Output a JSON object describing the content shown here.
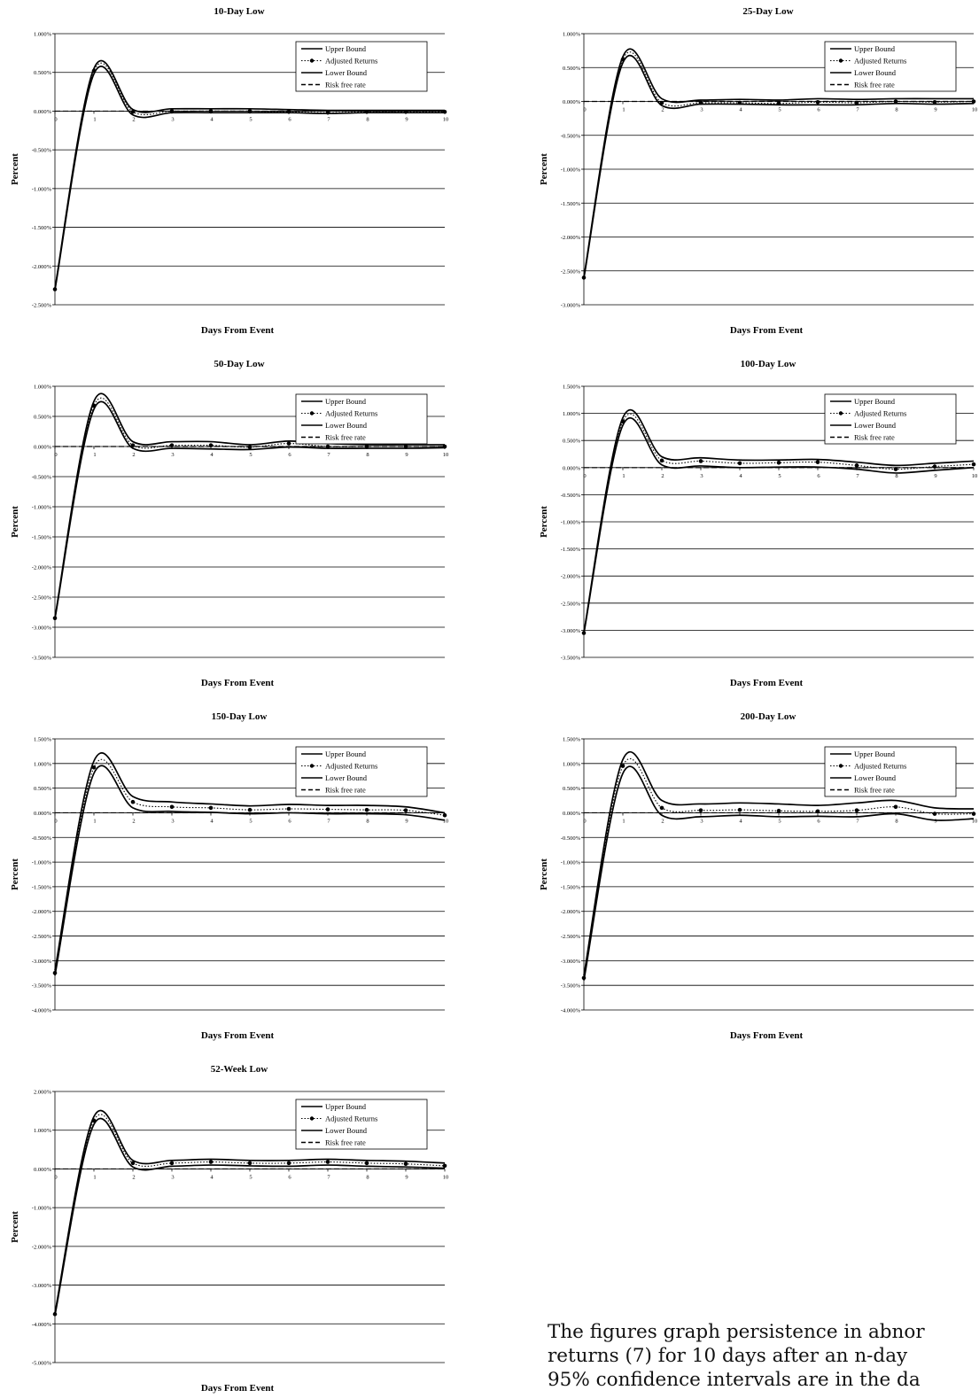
{
  "caption": {
    "line1": "The figures graph persistence in abnor",
    "line2": "returns (7) for 10 days after an n-day",
    "line3": "95% confidence intervals are in the da"
  },
  "legend_labels": [
    "Upper Bound",
    "Adjusted Returns",
    "Lower Bound",
    "Risk free rate"
  ],
  "chart_data": [
    {
      "type": "line",
      "title": "10-Day Low",
      "xlabel": "Days From Event",
      "ylabel": "Percent",
      "x": [
        0,
        1,
        2,
        3,
        4,
        5,
        6,
        7,
        8,
        9,
        10
      ],
      "ylim": [
        -2.5,
        1.0
      ],
      "y_ticks": [
        1.0,
        0.5,
        0.0,
        -0.5,
        -1.0,
        -1.5,
        -2.0,
        -2.5
      ],
      "y_tick_labels": [
        "1.000%",
        "0.500%",
        "0.000%",
        "-0.500%",
        "-1.000%",
        "-1.500%",
        "-2.000%",
        "-2.500%"
      ],
      "series": [
        {
          "name": "Upper Bound",
          "values": [
            -2.29,
            0.55,
            0.02,
            0.03,
            0.03,
            0.03,
            0.02,
            0.01,
            0.01,
            0.01,
            0.01
          ]
        },
        {
          "name": "Adjusted Returns",
          "values": [
            -2.3,
            0.52,
            -0.01,
            0.0,
            0.0,
            0.0,
            -0.01,
            -0.02,
            -0.01,
            -0.01,
            -0.01
          ]
        },
        {
          "name": "Lower Bound",
          "values": [
            -2.31,
            0.48,
            -0.05,
            -0.02,
            -0.02,
            -0.02,
            -0.02,
            -0.03,
            -0.02,
            -0.02,
            -0.02
          ]
        },
        {
          "name": "Risk free rate",
          "values": [
            0,
            0,
            0,
            0,
            0,
            0,
            0,
            0,
            0,
            0,
            0
          ]
        }
      ]
    },
    {
      "type": "line",
      "title": "25-Day Low",
      "xlabel": "Days From Event",
      "ylabel": "Percent",
      "x": [
        0,
        1,
        2,
        3,
        4,
        5,
        6,
        7,
        8,
        9,
        10
      ],
      "ylim": [
        -3.0,
        1.0
      ],
      "y_ticks": [
        1.0,
        0.5,
        0.0,
        -0.5,
        -1.0,
        -1.5,
        -2.0,
        -2.5,
        -3.0
      ],
      "y_tick_labels": [
        "1.000%",
        "0.500%",
        "0.000%",
        "-0.500%",
        "-1.000%",
        "-1.500%",
        "-2.000%",
        "-2.500%",
        "-3.000%"
      ],
      "series": [
        {
          "name": "Upper Bound",
          "values": [
            -2.59,
            0.66,
            0.04,
            0.02,
            0.03,
            0.02,
            0.04,
            0.03,
            0.04,
            0.04,
            0.04
          ]
        },
        {
          "name": "Adjusted Returns",
          "values": [
            -2.6,
            0.62,
            -0.02,
            -0.02,
            -0.02,
            -0.03,
            -0.01,
            -0.02,
            0.0,
            -0.01,
            0.0
          ]
        },
        {
          "name": "Lower Bound",
          "values": [
            -2.61,
            0.57,
            -0.06,
            -0.04,
            -0.04,
            -0.05,
            -0.05,
            -0.05,
            -0.03,
            -0.04,
            -0.03
          ]
        },
        {
          "name": "Risk free rate",
          "values": [
            0,
            0,
            0,
            0,
            0,
            0,
            0,
            0,
            0,
            0,
            0
          ]
        }
      ]
    },
    {
      "type": "line",
      "title": "50-Day Low",
      "xlabel": "Days From Event",
      "ylabel": "Percent",
      "x": [
        0,
        1,
        2,
        3,
        4,
        5,
        6,
        7,
        8,
        9,
        10
      ],
      "ylim": [
        -3.5,
        1.0
      ],
      "y_ticks": [
        1.0,
        0.5,
        0.0,
        -0.5,
        -1.0,
        -1.5,
        -2.0,
        -2.5,
        -3.0,
        -3.5
      ],
      "y_tick_labels": [
        "1.000%",
        "0.500%",
        "0.000%",
        "-0.500%",
        "-1.000%",
        "-1.500%",
        "-2.000%",
        "-2.500%",
        "-3.000%",
        "-3.500%"
      ],
      "series": [
        {
          "name": "Upper Bound",
          "values": [
            -2.84,
            0.75,
            0.08,
            0.08,
            0.08,
            0.03,
            0.09,
            0.05,
            0.03,
            0.03,
            0.03
          ]
        },
        {
          "name": "Adjusted Returns",
          "values": [
            -2.85,
            0.68,
            0.02,
            0.02,
            0.02,
            -0.01,
            0.05,
            0.0,
            0.0,
            0.0,
            0.0
          ]
        },
        {
          "name": "Lower Bound",
          "values": [
            -2.86,
            0.62,
            -0.03,
            -0.03,
            -0.04,
            -0.05,
            -0.01,
            -0.03,
            -0.03,
            -0.03,
            -0.02
          ]
        },
        {
          "name": "Risk free rate",
          "values": [
            0,
            0,
            0,
            0,
            0,
            0,
            0,
            0,
            0,
            0,
            0
          ]
        }
      ]
    },
    {
      "type": "line",
      "title": "100-Day Low",
      "xlabel": "Days From Event",
      "ylabel": "Percent",
      "x": [
        0,
        1,
        2,
        3,
        4,
        5,
        6,
        7,
        8,
        9,
        10
      ],
      "ylim": [
        -3.5,
        1.5
      ],
      "y_ticks": [
        1.5,
        1.0,
        0.5,
        0.0,
        -0.5,
        -1.0,
        -1.5,
        -2.0,
        -2.5,
        -3.0,
        -3.5
      ],
      "y_tick_labels": [
        "1.500%",
        "1.000%",
        "0.500%",
        "0.000%",
        "-0.500%",
        "-1.000%",
        "-1.500%",
        "-2.000%",
        "-2.500%",
        "-3.000%",
        "-3.500%"
      ],
      "series": [
        {
          "name": "Upper Bound",
          "values": [
            -3.04,
            0.92,
            0.2,
            0.18,
            0.14,
            0.14,
            0.15,
            0.1,
            0.04,
            0.08,
            0.12
          ]
        },
        {
          "name": "Adjusted Returns",
          "values": [
            -3.05,
            0.85,
            0.13,
            0.12,
            0.08,
            0.09,
            0.1,
            0.04,
            -0.03,
            0.02,
            0.06
          ]
        },
        {
          "name": "Lower Bound",
          "values": [
            -3.06,
            0.78,
            0.05,
            0.03,
            0.0,
            0.01,
            0.01,
            -0.03,
            -0.1,
            -0.05,
            0.0
          ]
        },
        {
          "name": "Risk free rate",
          "values": [
            0,
            0,
            0,
            0,
            0,
            0,
            0,
            0,
            0,
            0,
            0
          ]
        }
      ]
    },
    {
      "type": "line",
      "title": "150-Day Low",
      "xlabel": "Days From Event",
      "ylabel": "Percent",
      "x": [
        0,
        1,
        2,
        3,
        4,
        5,
        6,
        7,
        8,
        9,
        10
      ],
      "ylim": [
        -4.0,
        1.5
      ],
      "y_ticks": [
        1.5,
        1.0,
        0.5,
        0.0,
        -0.5,
        -1.0,
        -1.5,
        -2.0,
        -2.5,
        -3.0,
        -3.5,
        -4.0
      ],
      "y_tick_labels": [
        "1.500%",
        "1.000%",
        "0.500%",
        "0.000%",
        "-0.500%",
        "-1.000%",
        "-1.500%",
        "-2.000%",
        "-2.500%",
        "-3.000%",
        "-3.500%",
        "-4.000%"
      ],
      "series": [
        {
          "name": "Upper Bound",
          "values": [
            -3.2,
            1.05,
            0.33,
            0.22,
            0.18,
            0.14,
            0.17,
            0.15,
            0.15,
            0.12,
            0.0
          ]
        },
        {
          "name": "Adjusted Returns",
          "values": [
            -3.25,
            0.92,
            0.22,
            0.12,
            0.1,
            0.06,
            0.08,
            0.07,
            0.06,
            0.05,
            -0.05
          ]
        },
        {
          "name": "Lower Bound",
          "values": [
            -3.3,
            0.8,
            0.1,
            0.03,
            0.01,
            -0.02,
            0.0,
            -0.02,
            -0.02,
            -0.04,
            -0.15
          ]
        },
        {
          "name": "Risk free rate",
          "values": [
            0,
            0,
            0,
            0,
            0,
            0,
            0,
            0,
            0,
            0,
            0
          ]
        }
      ]
    },
    {
      "type": "line",
      "title": "200-Day Low",
      "xlabel": "Days From Event",
      "ylabel": "Percent",
      "x": [
        0,
        1,
        2,
        3,
        4,
        5,
        6,
        7,
        8,
        9,
        10
      ],
      "ylim": [
        -4.0,
        1.5
      ],
      "y_ticks": [
        1.5,
        1.0,
        0.5,
        0.0,
        -0.5,
        -1.0,
        -1.5,
        -2.0,
        -2.5,
        -3.0,
        -3.5,
        -4.0
      ],
      "y_tick_labels": [
        "1.500%",
        "1.000%",
        "0.500%",
        "0.000%",
        "-0.500%",
        "-1.000%",
        "-1.500%",
        "-2.000%",
        "-2.500%",
        "-3.000%",
        "-3.500%",
        "-4.000%"
      ],
      "series": [
        {
          "name": "Upper Bound",
          "values": [
            -3.3,
            1.08,
            0.25,
            0.18,
            0.2,
            0.18,
            0.15,
            0.2,
            0.25,
            0.1,
            0.08
          ]
        },
        {
          "name": "Adjusted Returns",
          "values": [
            -3.35,
            0.95,
            0.1,
            0.05,
            0.06,
            0.04,
            0.03,
            0.05,
            0.12,
            -0.02,
            -0.02
          ]
        },
        {
          "name": "Lower Bound",
          "values": [
            -3.4,
            0.8,
            -0.05,
            -0.08,
            -0.05,
            -0.08,
            -0.07,
            -0.08,
            -0.02,
            -0.15,
            -0.12
          ]
        },
        {
          "name": "Risk free rate",
          "values": [
            0,
            0,
            0,
            0,
            0,
            0,
            0,
            0,
            0,
            0,
            0
          ]
        }
      ]
    },
    {
      "type": "line",
      "title": "52-Week Low",
      "xlabel": "Days From Event",
      "ylabel": "Percent",
      "x": [
        0,
        1,
        2,
        3,
        4,
        5,
        6,
        7,
        8,
        9,
        10
      ],
      "ylim": [
        -5.0,
        2.0
      ],
      "y_ticks": [
        2.0,
        1.0,
        0.0,
        -1.0,
        -2.0,
        -3.0,
        -4.0,
        -5.0
      ],
      "y_tick_labels": [
        "2.000%",
        "1.000%",
        "0.000%",
        "-1.000%",
        "-2.000%",
        "-3.000%",
        "-4.000%",
        "-5.000%"
      ],
      "series": [
        {
          "name": "Upper Bound",
          "values": [
            -3.72,
            1.35,
            0.22,
            0.22,
            0.25,
            0.22,
            0.22,
            0.25,
            0.22,
            0.2,
            0.15
          ]
        },
        {
          "name": "Adjusted Returns",
          "values": [
            -3.75,
            1.25,
            0.15,
            0.15,
            0.18,
            0.15,
            0.15,
            0.18,
            0.15,
            0.13,
            0.08
          ]
        },
        {
          "name": "Lower Bound",
          "values": [
            -3.78,
            1.15,
            0.05,
            0.07,
            0.1,
            0.08,
            0.07,
            0.1,
            0.07,
            0.05,
            0.02
          ]
        },
        {
          "name": "Risk free rate",
          "values": [
            0,
            0,
            0,
            0,
            0,
            0,
            0,
            0,
            0,
            0,
            0
          ]
        }
      ]
    }
  ]
}
